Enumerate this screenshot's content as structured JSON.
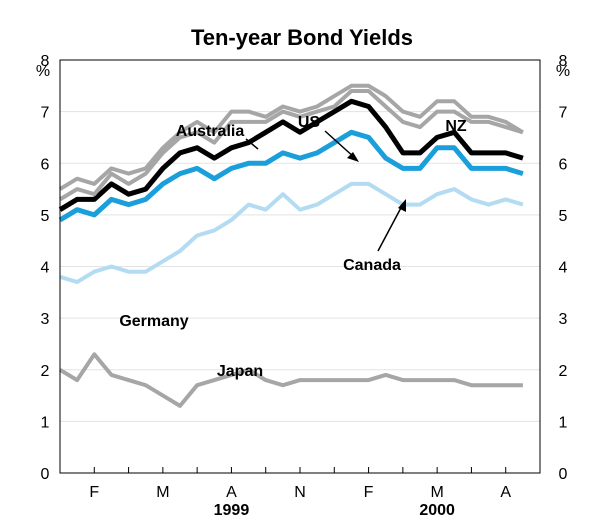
{
  "chart_data": {
    "type": "line",
    "title": "Ten-year Bond Yields",
    "ylabel_left": "%",
    "ylabel_right": "%",
    "ylim": [
      0,
      8
    ],
    "yticks": [
      0,
      1,
      2,
      3,
      4,
      5,
      6,
      7,
      8
    ],
    "grid": true,
    "x_tick_labels": [
      "F",
      "M",
      "A",
      "N",
      "F",
      "M",
      "A"
    ],
    "x_tick_positions": [
      1,
      3,
      5,
      7,
      9,
      11,
      13
    ],
    "x_range": [
      0,
      14
    ],
    "year_labels": [
      {
        "text": "1999",
        "at": 5
      },
      {
        "text": "2000",
        "at": 11
      }
    ],
    "x": [
      0.0,
      0.5,
      1.0,
      1.5,
      2.0,
      2.5,
      3.0,
      3.5,
      4.0,
      4.5,
      5.0,
      5.5,
      6.0,
      6.5,
      7.0,
      7.5,
      8.0,
      8.5,
      9.0,
      9.5,
      10.0,
      10.5,
      11.0,
      11.5,
      12.0,
      12.5,
      13.0,
      13.5
    ],
    "series": [
      {
        "name": "NZ",
        "color": "#a6a6a6",
        "values": [
          5.5,
          5.7,
          5.6,
          5.9,
          5.8,
          5.9,
          6.3,
          6.6,
          6.8,
          6.6,
          7.0,
          7.0,
          6.9,
          7.1,
          7.0,
          7.1,
          7.3,
          7.5,
          7.5,
          7.3,
          7.0,
          6.9,
          7.2,
          7.2,
          6.9,
          6.9,
          6.8,
          6.6
        ]
      },
      {
        "name": "US",
        "color": "#000000",
        "values": [
          5.1,
          5.3,
          5.3,
          5.6,
          5.4,
          5.5,
          5.9,
          6.2,
          6.3,
          6.1,
          6.3,
          6.4,
          6.6,
          6.8,
          6.6,
          6.8,
          7.0,
          7.2,
          7.1,
          6.7,
          6.2,
          6.2,
          6.5,
          6.6,
          6.2,
          6.2,
          6.2,
          6.1
        ]
      },
      {
        "name": "Australia",
        "color": "#a6a6a6",
        "values": [
          5.3,
          5.5,
          5.4,
          5.8,
          5.6,
          5.8,
          6.2,
          6.5,
          6.6,
          6.4,
          6.8,
          6.8,
          6.8,
          7.0,
          6.9,
          7.0,
          7.1,
          7.4,
          7.4,
          7.1,
          6.8,
          6.7,
          7.0,
          7.0,
          6.8,
          6.8,
          6.7,
          6.6
        ]
      },
      {
        "name": "Canada",
        "color": "#1a9fdb",
        "values": [
          4.9,
          5.1,
          5.0,
          5.3,
          5.2,
          5.3,
          5.6,
          5.8,
          5.9,
          5.7,
          5.9,
          6.0,
          6.0,
          6.2,
          6.1,
          6.2,
          6.4,
          6.6,
          6.5,
          6.1,
          5.9,
          5.9,
          6.3,
          6.3,
          5.9,
          5.9,
          5.9,
          5.8
        ]
      },
      {
        "name": "Germany",
        "color": "#b3dcf2",
        "values": [
          3.8,
          3.7,
          3.9,
          4.0,
          3.9,
          3.9,
          4.1,
          4.3,
          4.6,
          4.7,
          4.9,
          5.2,
          5.1,
          5.4,
          5.1,
          5.2,
          5.4,
          5.6,
          5.6,
          5.4,
          5.2,
          5.2,
          5.4,
          5.5,
          5.3,
          5.2,
          5.3,
          5.2
        ]
      },
      {
        "name": "Japan",
        "color": "#a6a6a6",
        "values": [
          2.0,
          1.8,
          2.3,
          1.9,
          1.8,
          1.7,
          1.5,
          1.3,
          1.7,
          1.8,
          1.9,
          2.0,
          1.8,
          1.7,
          1.8,
          1.8,
          1.8,
          1.8,
          1.8,
          1.9,
          1.8,
          1.8,
          1.8,
          1.8,
          1.7,
          1.7,
          1.7,
          1.7
        ]
      }
    ],
    "annotations": [
      {
        "text": "Australia",
        "series": "Australia"
      },
      {
        "text": "US",
        "series": "US"
      },
      {
        "text": "NZ",
        "series": "NZ"
      },
      {
        "text": "Canada",
        "series": "Canada"
      },
      {
        "text": "Germany",
        "series": "Germany"
      },
      {
        "text": "Japan",
        "series": "Japan"
      }
    ]
  }
}
